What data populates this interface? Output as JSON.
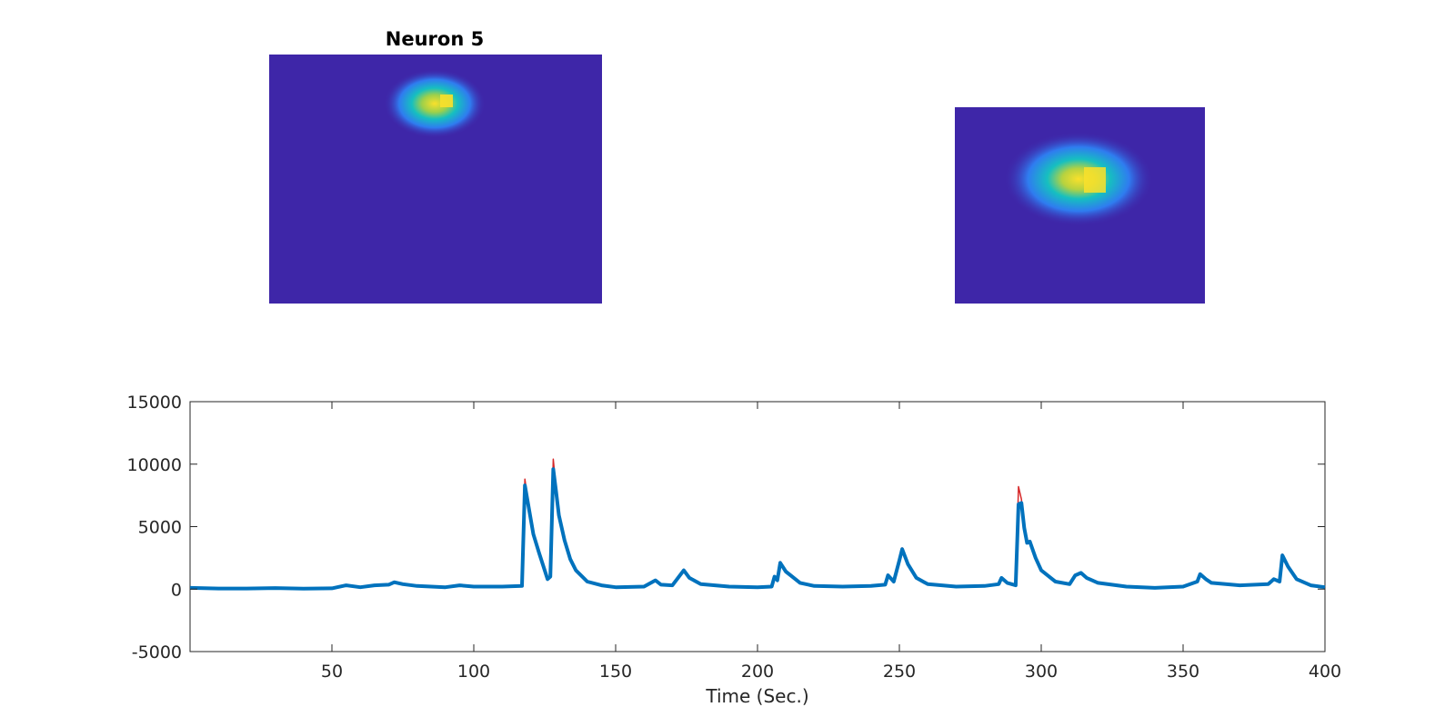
{
  "chart_data": [
    {
      "type": "heatmap",
      "title": "Neuron 5",
      "description_colors": {
        "background": "#3e26a8",
        "mid": "#16bfc0",
        "high": "#f9e02b"
      }
    },
    {
      "type": "heatmap",
      "title": ""
    },
    {
      "type": "line",
      "title": "",
      "xlabel": "Time (Sec.)",
      "ylabel": "",
      "xlim": [
        0,
        400
      ],
      "ylim": [
        -5000,
        15000
      ],
      "xticks": [
        50,
        100,
        150,
        200,
        250,
        300,
        350,
        400
      ],
      "yticks": [
        -5000,
        0,
        5000,
        10000,
        15000
      ],
      "grid": false,
      "series": [
        {
          "color": "#d62728",
          "points": [
            [
              0,
              100
            ],
            [
              10,
              50
            ],
            [
              20,
              50
            ],
            [
              30,
              80
            ],
            [
              40,
              40
            ],
            [
              50,
              60
            ],
            [
              55,
              300
            ],
            [
              60,
              150
            ],
            [
              65,
              300
            ],
            [
              70,
              350
            ],
            [
              72,
              550
            ],
            [
              75,
              400
            ],
            [
              80,
              250
            ],
            [
              90,
              150
            ],
            [
              95,
              300
            ],
            [
              100,
              200
            ],
            [
              110,
              200
            ],
            [
              117,
              250
            ],
            [
              118,
              8800
            ],
            [
              119,
              7200
            ],
            [
              121,
              4500
            ],
            [
              123,
              3000
            ],
            [
              125,
              1500
            ],
            [
              126,
              800
            ],
            [
              127,
              1000
            ],
            [
              128,
              10400
            ],
            [
              129,
              8000
            ],
            [
              130,
              6000
            ],
            [
              132,
              4000
            ],
            [
              134,
              2500
            ],
            [
              136,
              1500
            ],
            [
              140,
              600
            ],
            [
              145,
              300
            ],
            [
              150,
              150
            ],
            [
              160,
              200
            ],
            [
              164,
              700
            ],
            [
              166,
              350
            ],
            [
              170,
              300
            ],
            [
              174,
              1600
            ],
            [
              176,
              900
            ],
            [
              180,
              400
            ],
            [
              190,
              200
            ],
            [
              200,
              150
            ],
            [
              205,
              200
            ],
            [
              206,
              1000
            ],
            [
              207,
              700
            ],
            [
              208,
              2200
            ],
            [
              210,
              1400
            ],
            [
              215,
              500
            ],
            [
              220,
              250
            ],
            [
              230,
              200
            ],
            [
              240,
              250
            ],
            [
              245,
              350
            ],
            [
              246,
              1100
            ],
            [
              248,
              600
            ],
            [
              250,
              2400
            ],
            [
              251,
              3300
            ],
            [
              253,
              2000
            ],
            [
              256,
              900
            ],
            [
              260,
              400
            ],
            [
              270,
              200
            ],
            [
              280,
              250
            ],
            [
              285,
              400
            ],
            [
              286,
              900
            ],
            [
              288,
              500
            ],
            [
              291,
              300
            ],
            [
              292,
              8200
            ],
            [
              293,
              7200
            ],
            [
              294,
              5000
            ],
            [
              295,
              3800
            ],
            [
              296,
              3900
            ],
            [
              298,
              2500
            ],
            [
              300,
              1500
            ],
            [
              305,
              600
            ],
            [
              310,
              400
            ],
            [
              312,
              1200
            ],
            [
              314,
              1300
            ],
            [
              316,
              900
            ],
            [
              320,
              500
            ],
            [
              330,
              200
            ],
            [
              340,
              100
            ],
            [
              350,
              200
            ],
            [
              355,
              600
            ],
            [
              356,
              1200
            ],
            [
              358,
              800
            ],
            [
              360,
              500
            ],
            [
              370,
              300
            ],
            [
              380,
              400
            ],
            [
              382,
              800
            ],
            [
              384,
              600
            ],
            [
              385,
              2800
            ],
            [
              387,
              1800
            ],
            [
              390,
              800
            ],
            [
              395,
              300
            ],
            [
              400,
              150
            ]
          ]
        },
        {
          "color": "#0072bd",
          "points": [
            [
              0,
              100
            ],
            [
              10,
              50
            ],
            [
              20,
              50
            ],
            [
              30,
              80
            ],
            [
              40,
              40
            ],
            [
              50,
              60
            ],
            [
              55,
              300
            ],
            [
              60,
              150
            ],
            [
              65,
              300
            ],
            [
              70,
              350
            ],
            [
              72,
              550
            ],
            [
              75,
              400
            ],
            [
              80,
              250
            ],
            [
              90,
              150
            ],
            [
              95,
              300
            ],
            [
              100,
              200
            ],
            [
              110,
              200
            ],
            [
              117,
              250
            ],
            [
              118,
              8300
            ],
            [
              119,
              7000
            ],
            [
              121,
              4400
            ],
            [
              123,
              2900
            ],
            [
              125,
              1500
            ],
            [
              126,
              800
            ],
            [
              127,
              1000
            ],
            [
              128,
              9600
            ],
            [
              129,
              7800
            ],
            [
              130,
              5900
            ],
            [
              132,
              3900
            ],
            [
              134,
              2400
            ],
            [
              136,
              1500
            ],
            [
              140,
              600
            ],
            [
              145,
              300
            ],
            [
              150,
              150
            ],
            [
              160,
              200
            ],
            [
              164,
              700
            ],
            [
              166,
              350
            ],
            [
              170,
              300
            ],
            [
              174,
              1500
            ],
            [
              176,
              900
            ],
            [
              180,
              400
            ],
            [
              190,
              200
            ],
            [
              200,
              150
            ],
            [
              205,
              200
            ],
            [
              206,
              1000
            ],
            [
              207,
              700
            ],
            [
              208,
              2100
            ],
            [
              210,
              1400
            ],
            [
              215,
              500
            ],
            [
              220,
              250
            ],
            [
              230,
              200
            ],
            [
              240,
              250
            ],
            [
              245,
              350
            ],
            [
              246,
              1100
            ],
            [
              248,
              600
            ],
            [
              250,
              2300
            ],
            [
              251,
              3200
            ],
            [
              253,
              2000
            ],
            [
              256,
              900
            ],
            [
              260,
              400
            ],
            [
              270,
              200
            ],
            [
              280,
              250
            ],
            [
              285,
              400
            ],
            [
              286,
              900
            ],
            [
              288,
              500
            ],
            [
              291,
              300
            ],
            [
              292,
              6800
            ],
            [
              293,
              6900
            ],
            [
              294,
              4900
            ],
            [
              295,
              3700
            ],
            [
              296,
              3800
            ],
            [
              298,
              2500
            ],
            [
              300,
              1500
            ],
            [
              305,
              600
            ],
            [
              310,
              400
            ],
            [
              312,
              1100
            ],
            [
              314,
              1300
            ],
            [
              316,
              900
            ],
            [
              320,
              500
            ],
            [
              330,
              200
            ],
            [
              340,
              100
            ],
            [
              350,
              200
            ],
            [
              355,
              600
            ],
            [
              356,
              1200
            ],
            [
              358,
              800
            ],
            [
              360,
              500
            ],
            [
              370,
              300
            ],
            [
              380,
              400
            ],
            [
              382,
              800
            ],
            [
              384,
              600
            ],
            [
              385,
              2700
            ],
            [
              387,
              1800
            ],
            [
              390,
              800
            ],
            [
              395,
              300
            ],
            [
              400,
              150
            ]
          ]
        }
      ]
    }
  ]
}
